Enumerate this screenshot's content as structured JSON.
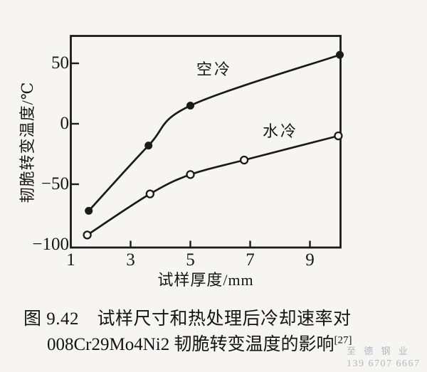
{
  "colors": {
    "ink": "#1a1a1a",
    "paper": "#f6f5f1",
    "watermark": "#b2b8c3"
  },
  "chart_data": {
    "type": "line",
    "title": "",
    "xlabel": "试样厚度/mm",
    "ylabel": "韧脆转变温度/℃",
    "xlim": [
      1,
      10
    ],
    "ylim": [
      -100,
      73
    ],
    "grid": false,
    "legend": "inline-curve-labels",
    "xticks": [
      1,
      3,
      5,
      7,
      9
    ],
    "xtick_labels": [
      "1",
      "3",
      "5",
      "7",
      "9"
    ],
    "yticks": [
      50,
      0,
      -50,
      -100
    ],
    "ytick_labels": [
      "50",
      "0",
      "−50",
      "−100"
    ],
    "series": [
      {
        "name": "空冷",
        "marker": "filled-circle",
        "points_x": [
          1.6,
          3.6,
          5.0,
          10.0
        ],
        "points_y": [
          -72,
          -18,
          15,
          57
        ]
      },
      {
        "name": "水冷",
        "marker": "open-circle",
        "points_x": [
          1.55,
          3.65,
          5.0,
          6.8,
          9.95
        ],
        "points_y": [
          -92,
          -58,
          -42,
          -30,
          -10
        ]
      }
    ]
  },
  "caption": {
    "line1": "图 9.42　试样尺寸和热处理后冷却速率对",
    "line2": "008Cr29Mo4Ni2 韧脆转变温度的影响",
    "reference": "[27]"
  },
  "watermark": {
    "company": "至 德 钢 业",
    "phone": "139 6707 6667"
  }
}
